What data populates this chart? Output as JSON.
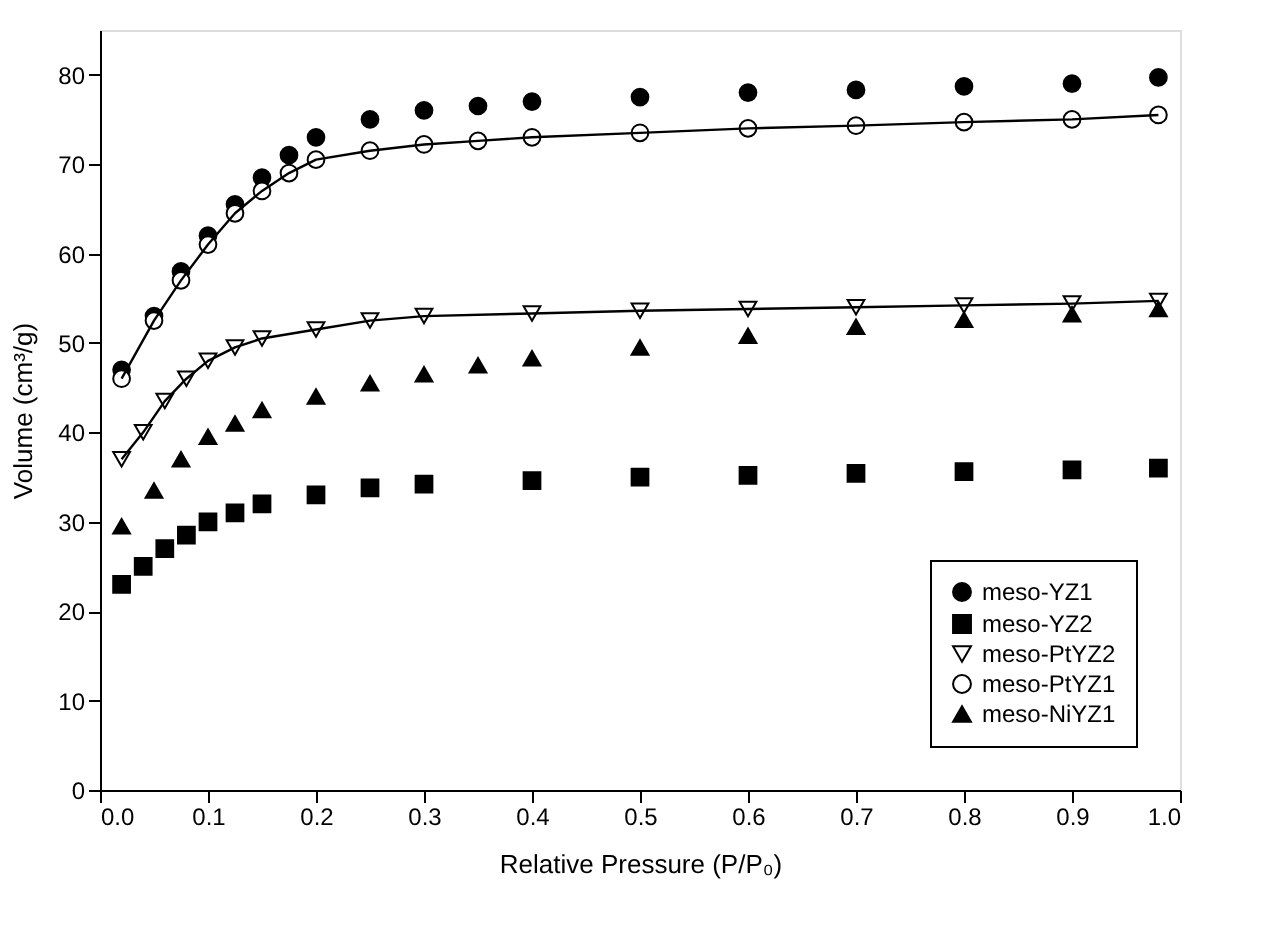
{
  "chart_data": {
    "type": "scatter",
    "xlabel": "Relative Pressure (P/P₀)",
    "ylabel": "Volume (cm³/g)",
    "xlim": [
      0,
      1
    ],
    "ylim": [
      0,
      85
    ],
    "xticks": [
      {
        "value": 0,
        "label": "0.0"
      },
      {
        "value": 0.1,
        "label": "0.1"
      },
      {
        "value": 0.2,
        "label": "0.2"
      },
      {
        "value": 0.3,
        "label": "0.3"
      },
      {
        "value": 0.4,
        "label": "0.4"
      },
      {
        "value": 0.5,
        "label": "0.5"
      },
      {
        "value": 0.6,
        "label": "0.6"
      },
      {
        "value": 0.7,
        "label": "0.7"
      },
      {
        "value": 0.8,
        "label": "0.8"
      },
      {
        "value": 0.9,
        "label": "0.9"
      },
      {
        "value": 1,
        "label": "1.0"
      }
    ],
    "yticks": [
      0,
      10,
      20,
      30,
      40,
      50,
      60,
      70,
      80
    ],
    "grid": false,
    "legend": "bottom right",
    "series": [
      {
        "name": "meso-YZ1",
        "type": "scatter",
        "marker": "circle",
        "color": "#000000",
        "x": [
          0.02,
          0.05,
          0.075,
          0.1,
          0.125,
          0.15,
          0.175,
          0.2,
          0.25,
          0.3,
          0.35,
          0.4,
          0.5,
          0.6,
          0.7,
          0.8,
          0.9,
          0.98
        ],
        "values": [
          47,
          53,
          58,
          62,
          65.5,
          68.5,
          71,
          73,
          75,
          76,
          76.5,
          77,
          77.5,
          78,
          78.3,
          78.7,
          79,
          79.7
        ]
      },
      {
        "name": "meso-YZ2",
        "type": "scatter",
        "marker": "square",
        "color": "#000000",
        "x": [
          0.02,
          0.04,
          0.06,
          0.08,
          0.1,
          0.125,
          0.15,
          0.2,
          0.25,
          0.3,
          0.4,
          0.5,
          0.6,
          0.7,
          0.8,
          0.9,
          0.98
        ],
        "values": [
          23,
          25,
          27,
          28.5,
          30,
          31,
          32,
          33,
          33.8,
          34.2,
          34.6,
          35,
          35.2,
          35.4,
          35.6,
          35.8,
          36
        ]
      },
      {
        "name": "meso-PtYZ2",
        "type": "line",
        "line_style": "solid",
        "marker": "triangle",
        "color": "#000000",
        "x": [
          0.02,
          0.04,
          0.06,
          0.08,
          0.1,
          0.125,
          0.15,
          0.2,
          0.25,
          0.3,
          0.4,
          0.5,
          0.6,
          0.7,
          0.8,
          0.9,
          0.98
        ],
        "values": [
          37,
          40,
          43.5,
          46,
          48,
          49.5,
          50.5,
          51.5,
          52.5,
          53,
          53.3,
          53.6,
          53.8,
          54,
          54.2,
          54.4,
          54.7
        ]
      },
      {
        "name": "meso-PtYZ1",
        "type": "line",
        "line_style": "solid",
        "marker": "circle",
        "color": "#000000",
        "x": [
          0.02,
          0.05,
          0.075,
          0.1,
          0.125,
          0.15,
          0.175,
          0.2,
          0.25,
          0.3,
          0.35,
          0.4,
          0.5,
          0.6,
          0.7,
          0.8,
          0.9,
          0.98
        ],
        "values": [
          46,
          52.5,
          57,
          61,
          64.5,
          67,
          69,
          70.5,
          71.5,
          72.2,
          72.6,
          73,
          73.5,
          74,
          74.3,
          74.7,
          75,
          75.5
        ]
      },
      {
        "name": "meso-NiYZ1",
        "type": "scatter",
        "marker": "triangle",
        "color": "#000000",
        "x": [
          0.02,
          0.05,
          0.075,
          0.1,
          0.125,
          0.15,
          0.2,
          0.25,
          0.3,
          0.35,
          0.4,
          0.5,
          0.6,
          0.7,
          0.8,
          0.9,
          0.98
        ],
        "values": [
          29.5,
          33.5,
          37,
          39.5,
          41,
          42.5,
          44,
          45.5,
          46.5,
          47.5,
          48.3,
          49.5,
          50.8,
          51.8,
          52.6,
          53.2,
          53.8
        ]
      }
    ]
  }
}
